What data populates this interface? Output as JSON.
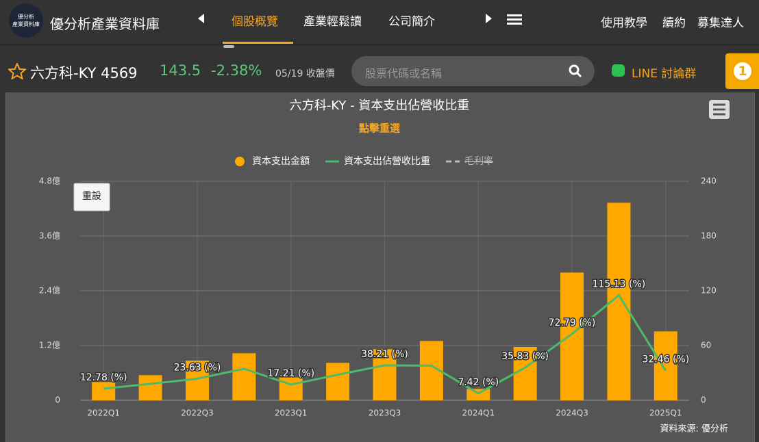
{
  "header": {
    "logo_text": [
      "優分析",
      "產業資料庫"
    ],
    "brand": "優分析產業資料庫",
    "nav": [
      "個股概覽",
      "產業輕鬆讀",
      "公司簡介"
    ],
    "right_links": [
      "使用教學",
      "續約",
      "募集達人"
    ]
  },
  "stock": {
    "name": "六方科-KY 4569",
    "price": "143.5",
    "change": "-2.38%",
    "date": "05/19 收盤價"
  },
  "search": {
    "placeholder": "股票代碼或名稱"
  },
  "line_group": "LINE 討論群",
  "badge": "1",
  "chart_data": {
    "type": "bar",
    "title": "六方科-KY - 資本支出佔營收比重",
    "subtitle": "點擊重選",
    "reset": "重設",
    "source": "資料來源: 優分析",
    "categories": [
      "2022Q1",
      null,
      "2022Q3",
      null,
      "2023Q1",
      null,
      "2023Q3",
      null,
      "2024Q1",
      null,
      "2024Q3",
      null,
      "2025Q1"
    ],
    "series": [
      {
        "name": "資本支出金額",
        "type": "bar",
        "color": "#ffa800",
        "values": [
          0.4,
          0.55,
          0.87,
          1.03,
          0.5,
          0.82,
          1.12,
          1.3,
          0.25,
          1.17,
          2.8,
          4.33,
          1.51
        ]
      },
      {
        "name": "資本支出佔營收比重",
        "type": "line",
        "axis": "y2",
        "color": "#4cbb6c",
        "values": [
          12.78,
          18,
          23.63,
          34.5,
          17.21,
          28,
          38.21,
          38,
          7.42,
          35.83,
          72.79,
          115.13,
          32.46
        ],
        "value_labels": [
          "12.78 (%)",
          null,
          "23.63 (%)",
          null,
          "17.21 (%)",
          null,
          "38.21 (%)",
          null,
          "7.42 (%)",
          "35.83 (%)",
          "72.79 (%)",
          "115.13 (%)",
          "32.46 (%)"
        ]
      }
    ],
    "hidden_series": [
      {
        "name": "毛利率"
      }
    ],
    "ylim": [
      0,
      4.8
    ],
    "yticks": [
      0,
      {
        "value": 1.2,
        "label": "1.2億"
      },
      {
        "value": 2.4,
        "label": "2.4億"
      },
      {
        "value": 3.6,
        "label": "3.6億"
      },
      {
        "value": 4.8,
        "label": "4.8億"
      }
    ],
    "y2lim": [
      0,
      240
    ],
    "y2ticks": [
      0,
      60,
      120,
      180,
      240
    ],
    "grid": true
  }
}
